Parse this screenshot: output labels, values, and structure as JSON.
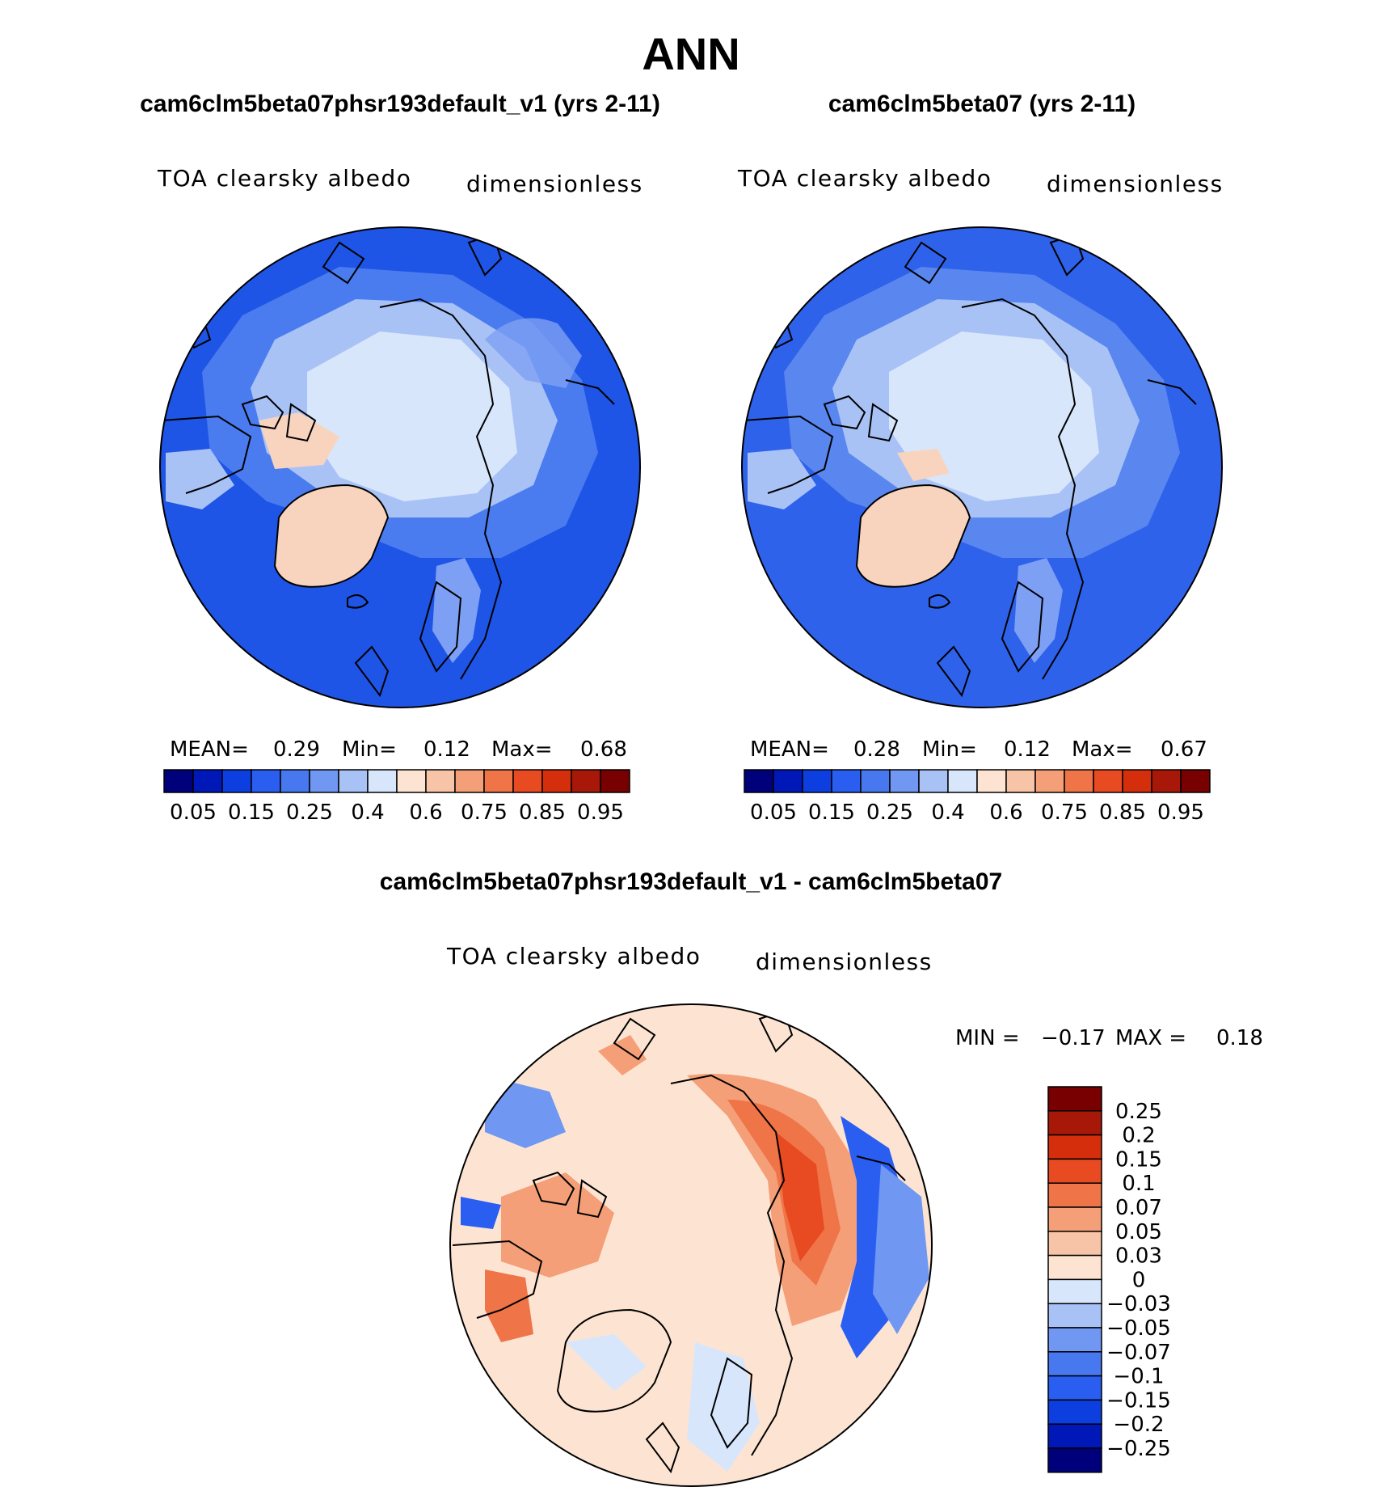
{
  "title": "ANN",
  "panels": [
    {
      "case_title": "cam6clm5beta07phsr193default_v1 (yrs 2-11)",
      "variable": "TOA clearsky albedo",
      "units": "dimensionless",
      "stats": {
        "mean_label": "MEAN=",
        "mean": "0.29",
        "min_label": "Min=",
        "min": "0.12",
        "max_label": "Max=",
        "max": "0.68"
      }
    },
    {
      "case_title": "cam6clm5beta07 (yrs 2-11)",
      "variable": "TOA clearsky albedo",
      "units": "dimensionless",
      "stats": {
        "mean_label": "MEAN=",
        "mean": "0.28",
        "min_label": "Min=",
        "min": "0.12",
        "max_label": "Max=",
        "max": "0.67"
      }
    }
  ],
  "diff_panel": {
    "case_title": "cam6clm5beta07phsr193default_v1 - cam6clm5beta07",
    "variable": "TOA clearsky albedo",
    "units": "dimensionless",
    "stats": {
      "min_label": "MIN =",
      "min": "−0.17",
      "max_label": "MAX =",
      "max": "0.18"
    }
  },
  "chart_data": [
    {
      "type": "heatmap",
      "projection": "north-polar-stereographic",
      "title": "cam6clm5beta07phsr193default_v1 (yrs 2-11)",
      "field": "TOA clearsky albedo",
      "units": "dimensionless",
      "mean": 0.29,
      "min": 0.12,
      "max": 0.68,
      "colorbar_orientation": "horizontal",
      "colorbar_levels": [
        0.05,
        0.1,
        0.15,
        0.2,
        0.25,
        0.3,
        0.4,
        0.5,
        0.6,
        0.7,
        0.75,
        0.8,
        0.85,
        0.9,
        0.95
      ],
      "colorbar_tick_labels": [
        "0.05",
        "0.15",
        "0.25",
        "0.4",
        "0.6",
        "0.75",
        "0.85",
        "0.95"
      ],
      "colors": [
        "#00007a",
        "#0018b8",
        "#0d3fe0",
        "#2a5ef0",
        "#4878f0",
        "#7097f2",
        "#a8c2f6",
        "#d8e6fb",
        "#fde4d2",
        "#f8c4a8",
        "#f49f78",
        "#ef7448",
        "#e84a22",
        "#d42e0c",
        "#a81808",
        "#780000"
      ]
    },
    {
      "type": "heatmap",
      "projection": "north-polar-stereographic",
      "title": "cam6clm5beta07 (yrs 2-11)",
      "field": "TOA clearsky albedo",
      "units": "dimensionless",
      "mean": 0.28,
      "min": 0.12,
      "max": 0.67,
      "colorbar_orientation": "horizontal",
      "colorbar_levels": [
        0.05,
        0.1,
        0.15,
        0.2,
        0.25,
        0.3,
        0.4,
        0.5,
        0.6,
        0.7,
        0.75,
        0.8,
        0.85,
        0.9,
        0.95
      ],
      "colorbar_tick_labels": [
        "0.05",
        "0.15",
        "0.25",
        "0.4",
        "0.6",
        "0.75",
        "0.85",
        "0.95"
      ],
      "colors": [
        "#00007a",
        "#0018b8",
        "#0d3fe0",
        "#2a5ef0",
        "#4878f0",
        "#7097f2",
        "#a8c2f6",
        "#d8e6fb",
        "#fde4d2",
        "#f8c4a8",
        "#f49f78",
        "#ef7448",
        "#e84a22",
        "#d42e0c",
        "#a81808",
        "#780000"
      ]
    },
    {
      "type": "heatmap",
      "projection": "north-polar-stereographic",
      "title": "cam6clm5beta07phsr193default_v1 - cam6clm5beta07",
      "field": "TOA clearsky albedo",
      "units": "dimensionless",
      "min": -0.17,
      "max": 0.18,
      "colorbar_orientation": "vertical",
      "colorbar_levels": [
        0.25,
        0.2,
        0.15,
        0.1,
        0.07,
        0.05,
        0.03,
        0,
        -0.03,
        -0.05,
        -0.07,
        -0.1,
        -0.15,
        -0.2,
        -0.25
      ],
      "colorbar_tick_labels": [
        "0.25",
        "0.2",
        "0.15",
        "0.1",
        "0.07",
        "0.05",
        "0.03",
        "0",
        "−0.03",
        "−0.05",
        "−0.07",
        "−0.1",
        "−0.15",
        "−0.2",
        "−0.25"
      ],
      "colors": [
        "#780000",
        "#a81808",
        "#d42e0c",
        "#e84a22",
        "#ef7448",
        "#f49f78",
        "#f8c4a8",
        "#fde4d2",
        "#d8e6fb",
        "#a8c2f6",
        "#7097f2",
        "#4878f0",
        "#2a5ef0",
        "#0d3fe0",
        "#0018b8",
        "#00007a"
      ]
    }
  ]
}
